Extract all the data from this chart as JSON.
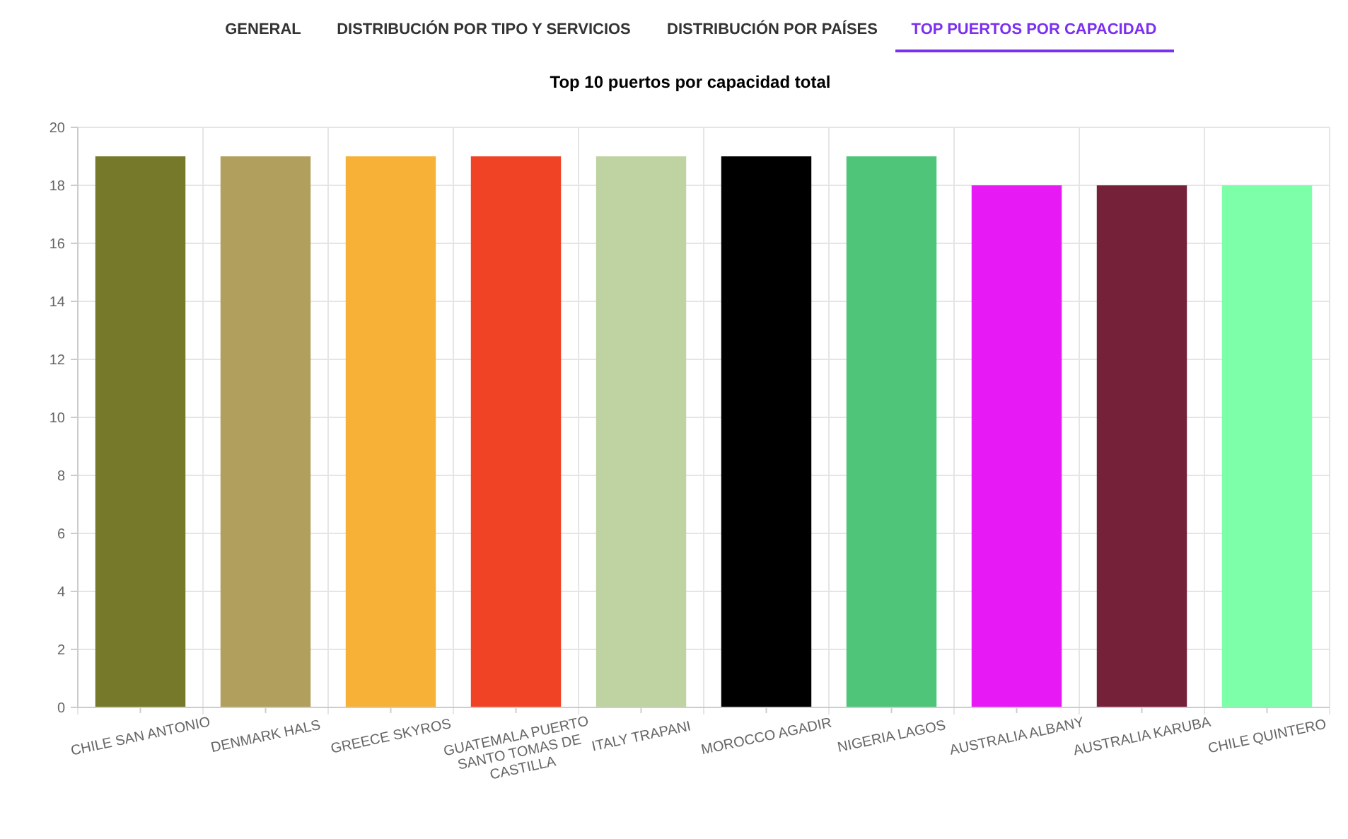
{
  "chart_data": {
    "type": "bar",
    "title": "Top 10 puertos por capacidad total",
    "annotations": [
      "GENERAL",
      "DISTRIBUCIÓN POR TIPO Y SERVICIOS",
      "DISTRIBUCIÓN POR PAÍSES",
      "TOP PUERTOS POR CAPACIDAD"
    ],
    "categories": [
      "CHILE SAN ANTONIO",
      "DENMARK HALS",
      "GREECE SKYROS",
      "GUATEMALA PUERTO SANTO TOMAS DE CASTILLA",
      "ITALY TRAPANI",
      "MOROCCO AGADIR",
      "NIGERIA LAGOS",
      "AUSTRALIA ALBANY",
      "AUSTRALIA KARUBA",
      "CHILE QUINTERO"
    ],
    "values": [
      19,
      19,
      19,
      19,
      19,
      19,
      19,
      18,
      18,
      18
    ],
    "colors": [
      "#76782a",
      "#b19f5e",
      "#f6b136",
      "#f04225",
      "#bfd3a2",
      "#000000",
      "#4fc57a",
      "#e719f5",
      "#76213a",
      "#7dffaa"
    ],
    "ylim": [
      0,
      20
    ],
    "yticks": [
      0,
      2,
      4,
      6,
      8,
      10,
      12,
      14,
      16,
      18,
      20
    ],
    "grid": true
  }
}
